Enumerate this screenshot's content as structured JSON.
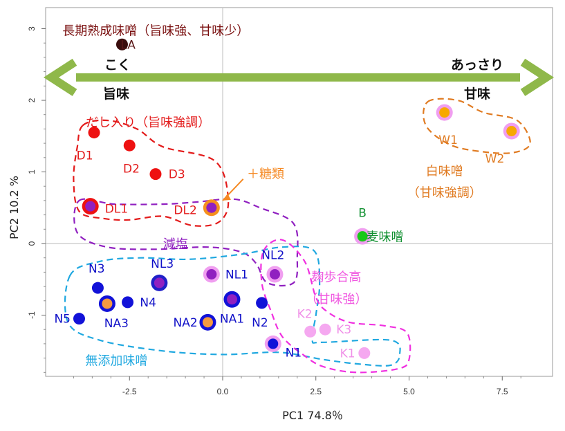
{
  "chart_data": {
    "type": "scatter",
    "xlabel": "PC1  74.8％",
    "ylabel": "PC2  10.2 %",
    "xlim": [
      -4.3,
      8.0
    ],
    "ylim": [
      -1.9,
      3.2
    ],
    "xticks": [
      -2.5,
      0.0,
      2.5,
      5.0,
      7.5
    ],
    "xtick_labels": [
      "-2.5",
      "0.0",
      "2.5",
      "5.0",
      "7.5"
    ],
    "yticks": [
      -1,
      0,
      1,
      2,
      3
    ],
    "ytick_labels": [
      "-1",
      "0",
      "1",
      "2",
      "3"
    ],
    "zero_lines": true,
    "points": [
      {
        "label": "LA",
        "x": -2.7,
        "y": 2.78,
        "fill": "#3a0d0d",
        "ring": null,
        "label_color": "#5a1818",
        "lx": 0.16,
        "ly": 0.0
      },
      {
        "label": "D1",
        "x": -3.45,
        "y": 1.55,
        "fill": "#ee1111",
        "ring": null,
        "label_color": "#e31b1b",
        "lx": -0.25,
        "ly": -0.32
      },
      {
        "label": "D2",
        "x": -2.5,
        "y": 1.37,
        "fill": "#ee1111",
        "ring": null,
        "label_color": "#e31b1b",
        "lx": 0.05,
        "ly": -0.32
      },
      {
        "label": "D3",
        "x": -1.8,
        "y": 0.97,
        "fill": "#ee1111",
        "ring": null,
        "label_color": "#e31b1b",
        "lx": 0.57,
        "ly": 0.0
      },
      {
        "label": "DL1",
        "x": -3.55,
        "y": 0.52,
        "fill": "#9020c0",
        "ring": "#ee1111",
        "label_color": "#e31b1b",
        "lx": 0.7,
        "ly": -0.03
      },
      {
        "label": "DL2",
        "x": -0.3,
        "y": 0.5,
        "fill": "#9020c0",
        "ring": "#f5901e",
        "label_color": "#e31b1b",
        "lx": -0.7,
        "ly": -0.03
      },
      {
        "label": "W1",
        "x": 5.95,
        "y": 1.83,
        "fill": "#f7a800",
        "ring": "#f09ef0",
        "label_color": "#e07b22",
        "lx": 0.1,
        "ly": -0.38
      },
      {
        "label": "W2",
        "x": 7.75,
        "y": 1.57,
        "fill": "#f7a800",
        "ring": "#f09ef0",
        "label_color": "#e07b22",
        "lx": -0.45,
        "ly": -0.38
      },
      {
        "label": "B",
        "x": 3.75,
        "y": 0.1,
        "fill": "#18c818",
        "ring": "#f09ef0",
        "label_color": "#109030",
        "lx": 0.0,
        "ly": 0.33
      },
      {
        "label": "NL2",
        "x": 1.4,
        "y": -0.43,
        "fill": "#9020c0",
        "ring": "#f09ef0",
        "label_color": "#1010c8",
        "lx": -0.05,
        "ly": 0.27
      },
      {
        "label": "NL1",
        "x": -0.3,
        "y": -0.43,
        "fill": "#9020c0",
        "ring": "#f09ef0",
        "label_color": "#1010c8",
        "lx": 0.68,
        "ly": 0.0
      },
      {
        "label": "NL3",
        "x": -1.7,
        "y": -0.55,
        "fill": "#9020c0",
        "ring": "#2020c8",
        "label_color": "#1010c8",
        "lx": 0.08,
        "ly": 0.27
      },
      {
        "label": "N3",
        "x": -3.35,
        "y": -0.62,
        "fill": "#1212d8",
        "ring": null,
        "label_color": "#1010c8",
        "lx": -0.03,
        "ly": 0.27
      },
      {
        "label": "NA3",
        "x": -3.1,
        "y": -0.84,
        "fill": "#f59a40",
        "ring": "#1212d8",
        "label_color": "#1010c8",
        "lx": 0.25,
        "ly": -0.27
      },
      {
        "label": "N4",
        "x": -2.55,
        "y": -0.82,
        "fill": "#1212d8",
        "ring": null,
        "label_color": "#1010c8",
        "lx": 0.55,
        "ly": 0.0
      },
      {
        "label": "NA1",
        "x": 0.25,
        "y": -0.78,
        "fill": "#9020c0",
        "ring": "#1212d8",
        "label_color": "#1010c8",
        "lx": 0.0,
        "ly": -0.27
      },
      {
        "label": "N2",
        "x": 1.05,
        "y": -0.83,
        "fill": "#1212d8",
        "ring": null,
        "label_color": "#1010c8",
        "lx": -0.05,
        "ly": -0.27
      },
      {
        "label": "N5",
        "x": -3.85,
        "y": -1.05,
        "fill": "#1212d8",
        "ring": null,
        "label_color": "#1010c8",
        "lx": -0.45,
        "ly": 0.0
      },
      {
        "label": "NA2",
        "x": -0.4,
        "y": -1.1,
        "fill": "#f59a40",
        "ring": "#1212d8",
        "label_color": "#1010c8",
        "lx": -0.6,
        "ly": 0.0
      },
      {
        "label": "N1",
        "x": 1.35,
        "y": -1.4,
        "fill": "#1212d8",
        "ring": "#f09ef0",
        "label_color": "#1010c8",
        "lx": 0.55,
        "ly": -0.12
      },
      {
        "label": "K2",
        "x": 2.35,
        "y": -1.23,
        "fill": "#f5a8f0",
        "ring": null,
        "label_color": "#f090e8",
        "lx": -0.15,
        "ly": 0.25
      },
      {
        "label": "K3",
        "x": 2.75,
        "y": -1.2,
        "fill": "#f5a8f0",
        "ring": null,
        "label_color": "#f090e8",
        "lx": 0.5,
        "ly": 0.0
      },
      {
        "label": "K1",
        "x": 3.8,
        "y": -1.53,
        "fill": "#f5a8f0",
        "ring": null,
        "label_color": "#f090e8",
        "lx": -0.45,
        "ly": 0.0
      }
    ],
    "annotations": [
      {
        "text": "長期熟成味噌（旨味強、甘味少）",
        "color": "#7a1010",
        "x": -4.3,
        "y": 2.98
      },
      {
        "text": "だし入り（旨味強調）",
        "color": "#e31b1b",
        "x": -2.0,
        "y": 1.7
      },
      {
        "text": "＋糖類",
        "color": "#f58a25",
        "x": 0.65,
        "y": 0.98
      },
      {
        "text": "減塩",
        "color": "#9020c0",
        "x": -1.6,
        "y": 0.0
      },
      {
        "text": "白味噌",
        "color": "#e07b22",
        "x": 5.95,
        "y": 1.02
      },
      {
        "text": "（甘味強調）",
        "color": "#e07b22",
        "x": 5.95,
        "y": 0.72
      },
      {
        "text": "麦味噌",
        "color": "#109030",
        "x": 4.35,
        "y": 0.1
      },
      {
        "text": "麹歩合高",
        "color": "#f058e0",
        "x": 3.05,
        "y": -0.46
      },
      {
        "text": "（甘味強）",
        "color": "#f058e0",
        "x": 3.05,
        "y": -0.77
      },
      {
        "text": "無添加味噌",
        "color": "#20a8e0",
        "x": -2.85,
        "y": -1.63
      }
    ],
    "arrow": {
      "color": "#8fb84a",
      "left_top": "こく",
      "left_bottom": "旨味",
      "right_top": "あっさり",
      "right_bottom": "甘味"
    },
    "group_colors": {
      "dashi": "#e31b1b",
      "genen": "#9020c0",
      "shiro": "#e07b22",
      "koji": "#f030e0",
      "mutenka": "#20a8e0",
      "sugar": "#f58a25"
    }
  }
}
